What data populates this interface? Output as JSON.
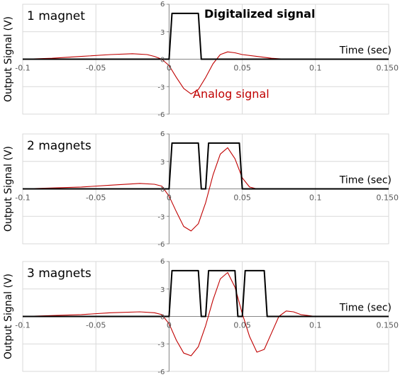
{
  "chart_data": [
    {
      "type": "line",
      "panel_label": "1 magnet",
      "xlabel": "Time (sec)",
      "ylabel": "Output Signal (V)",
      "xlim": [
        -0.1,
        0.15
      ],
      "ylim": [
        -6,
        6
      ],
      "xticks": [
        -0.1,
        -0.05,
        0,
        0.05,
        0.1,
        0.15
      ],
      "xtick_labels": [
        "-0.1",
        "-0.05",
        "0",
        "0.05",
        "0.1",
        "0.150"
      ],
      "yticks": [
        -6,
        -3,
        0,
        3,
        6
      ],
      "ytick_labels": [
        "-6",
        "-3",
        "0",
        "3",
        "6"
      ],
      "grid": true,
      "annotations": [
        {
          "text": "Digitalized signal",
          "color": "#000000",
          "bold": true
        },
        {
          "text": "Analog signal",
          "color": "#c00000",
          "bold": false
        }
      ],
      "series": [
        {
          "color": "#c00000",
          "x": [
            -0.1,
            -0.08,
            -0.06,
            -0.04,
            -0.025,
            -0.015,
            -0.01,
            -0.005,
            0,
            0.005,
            0.01,
            0.015,
            0.02,
            0.025,
            0.03,
            0.035,
            0.04,
            0.045,
            0.05,
            0.06,
            0.07,
            0.08,
            0.1,
            0.15
          ],
          "y": [
            0,
            0.1,
            0.3,
            0.5,
            0.6,
            0.5,
            0.3,
            0,
            -0.7,
            -2,
            -3.2,
            -3.8,
            -3.3,
            -2,
            -0.5,
            0.5,
            0.8,
            0.7,
            0.5,
            0.3,
            0.1,
            0,
            0,
            0
          ]
        },
        {
          "color": "#000000",
          "x": [
            -0.1,
            0,
            0.002,
            0.02,
            0.022,
            0.15
          ],
          "y": [
            0,
            0,
            5,
            5,
            0,
            0
          ]
        }
      ]
    },
    {
      "type": "line",
      "panel_label": "2 magnets",
      "xlabel": "Time (sec)",
      "ylabel": "Output Signal (V)",
      "xlim": [
        -0.1,
        0.15
      ],
      "ylim": [
        -6,
        6
      ],
      "xticks": [
        -0.1,
        -0.05,
        0,
        0.05,
        0.1,
        0.15
      ],
      "xtick_labels": [
        "-0.1",
        "-0.05",
        "0",
        "0.05",
        "0.1",
        "0.150"
      ],
      "yticks": [
        -6,
        -3,
        0,
        3,
        6
      ],
      "ytick_labels": [
        "-6",
        "-3",
        "0",
        "3",
        "6"
      ],
      "grid": true,
      "annotations": [],
      "series": [
        {
          "color": "#c00000",
          "x": [
            -0.1,
            -0.06,
            -0.04,
            -0.02,
            -0.01,
            -0.005,
            0,
            0.005,
            0.01,
            0.015,
            0.02,
            0.025,
            0.03,
            0.035,
            0.04,
            0.045,
            0.05,
            0.055,
            0.06,
            0.08,
            0.1,
            0.15
          ],
          "y": [
            0,
            0.2,
            0.4,
            0.6,
            0.5,
            0.3,
            -0.8,
            -2.5,
            -4.1,
            -4.6,
            -3.8,
            -1.5,
            1.5,
            3.8,
            4.5,
            3.3,
            1.2,
            0.2,
            0,
            0,
            0,
            0
          ]
        },
        {
          "color": "#000000",
          "x": [
            -0.1,
            0,
            0.002,
            0.02,
            0.022,
            0.025,
            0.027,
            0.048,
            0.05,
            0.15
          ],
          "y": [
            0,
            0,
            5,
            5,
            0,
            0,
            5,
            5,
            0,
            0
          ]
        }
      ]
    },
    {
      "type": "line",
      "panel_label": "3 magnets",
      "xlabel": "Time (sec)",
      "ylabel": "Output Signal (V)",
      "xlim": [
        -0.1,
        0.15
      ],
      "ylim": [
        -6,
        6
      ],
      "xticks": [
        -0.1,
        -0.05,
        0,
        0.05,
        0.1,
        0.15
      ],
      "xtick_labels": [
        "-0.1",
        "-0.05",
        "0",
        "0.05",
        "0.1",
        "0.150"
      ],
      "yticks": [
        -6,
        -3,
        0,
        3,
        6
      ],
      "ytick_labels": [
        "-6",
        "-3",
        "0",
        "3",
        "6"
      ],
      "grid": true,
      "annotations": [],
      "series": [
        {
          "color": "#c00000",
          "x": [
            -0.1,
            -0.06,
            -0.04,
            -0.02,
            -0.01,
            -0.005,
            0,
            0.005,
            0.01,
            0.015,
            0.02,
            0.025,
            0.03,
            0.035,
            0.04,
            0.045,
            0.05,
            0.055,
            0.06,
            0.065,
            0.07,
            0.075,
            0.08,
            0.085,
            0.09,
            0.1,
            0.15
          ],
          "y": [
            0,
            0.2,
            0.4,
            0.5,
            0.4,
            0.2,
            -0.8,
            -2.6,
            -4,
            -4.3,
            -3.3,
            -1,
            1.8,
            4.1,
            4.8,
            3.2,
            0.3,
            -2.2,
            -3.9,
            -3.6,
            -1.8,
            0,
            0.6,
            0.5,
            0.2,
            0,
            0
          ]
        },
        {
          "color": "#000000",
          "x": [
            -0.1,
            0,
            0.002,
            0.02,
            0.022,
            0.025,
            0.027,
            0.045,
            0.047,
            0.05,
            0.052,
            0.065,
            0.067,
            0.15
          ],
          "y": [
            0,
            0,
            5,
            5,
            0,
            0,
            5,
            5,
            0,
            0,
            5,
            5,
            0,
            0
          ]
        }
      ]
    }
  ]
}
